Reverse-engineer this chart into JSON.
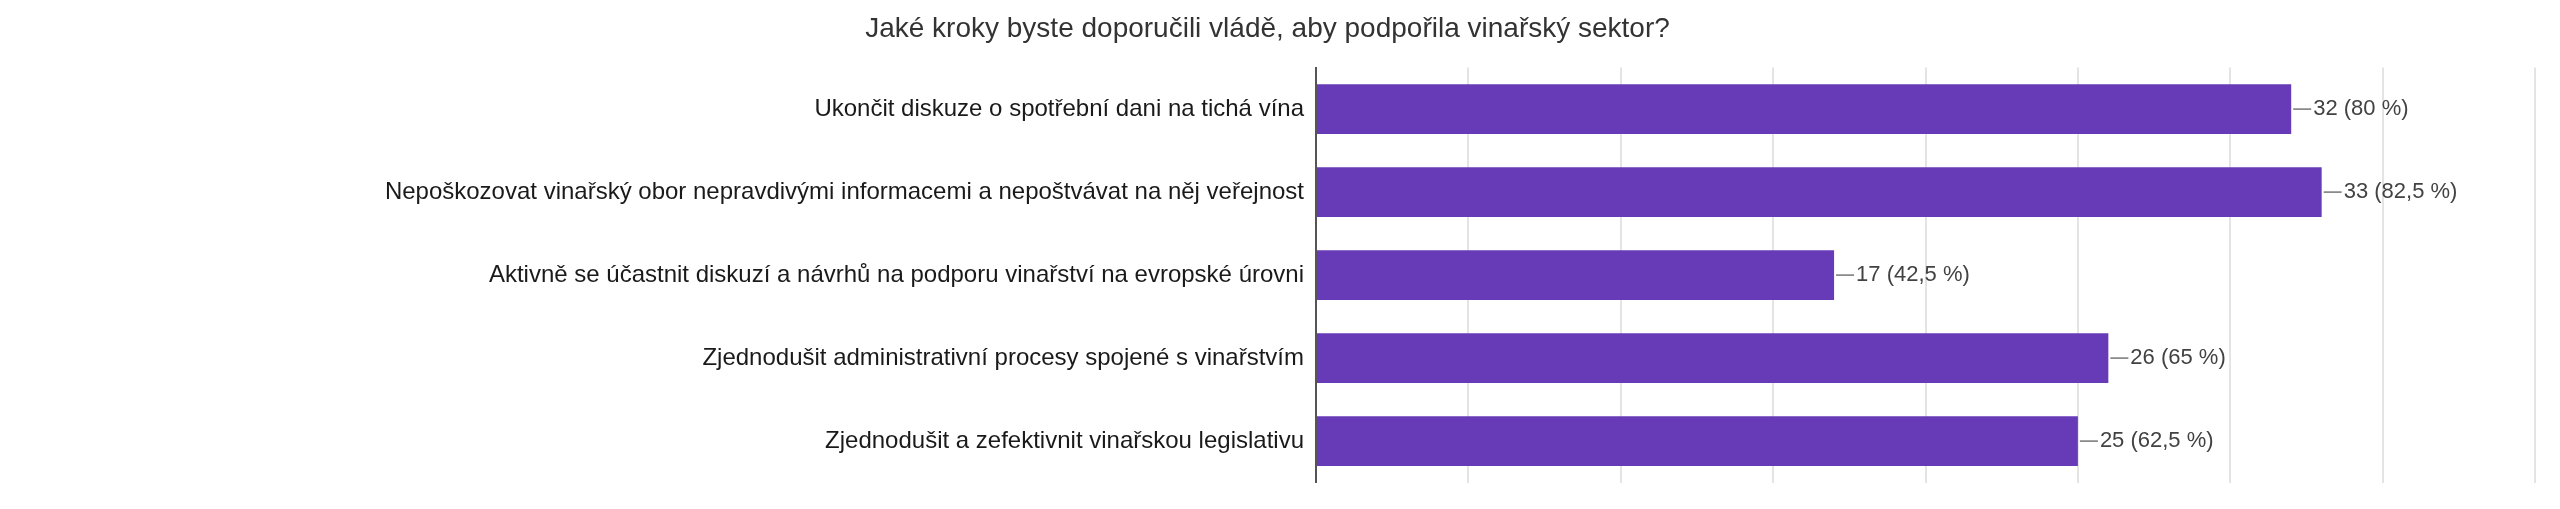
{
  "chart_data": {
    "type": "bar",
    "orientation": "horizontal",
    "title": "Jaké kroky byste doporučili vládě, aby podpořila vinařský sektor?",
    "categories": [
      "Ukončit diskuze o spotřební dani na tichá vína",
      "Nepoškozovat vinařský obor nepravdivými informacemi a nepoštvávat na něj veřejnost",
      "Aktivně se účastnit diskuzí a návrhů na podporu vinařství na evropské úrovni",
      "Zjednodušit administrativní procesy spojené s vinařstvím",
      "Zjednodušit a zefektivnit vinařskou legislativu"
    ],
    "values": [
      32,
      33,
      17,
      26,
      25
    ],
    "value_labels": [
      "32 (80 %)",
      "33 (82,5 %)",
      "17 (42,5 %)",
      "26 (65 %)",
      "25 (62,5 %)"
    ],
    "color": "#673ab7",
    "xlim": [
      0,
      40
    ],
    "xticks": [
      {
        "value": 0,
        "label": null
      },
      {
        "value": 5,
        "label": null
      },
      {
        "value": 10,
        "label": null
      },
      {
        "value": 15,
        "label": null
      },
      {
        "value": 20,
        "label": null
      },
      {
        "value": 25,
        "label": null
      },
      {
        "value": 30,
        "label": null
      },
      {
        "value": 35,
        "label": null
      },
      {
        "value": 40,
        "label": null
      }
    ],
    "tick_labels": "y",
    "grid": "x",
    "legend": false
  }
}
